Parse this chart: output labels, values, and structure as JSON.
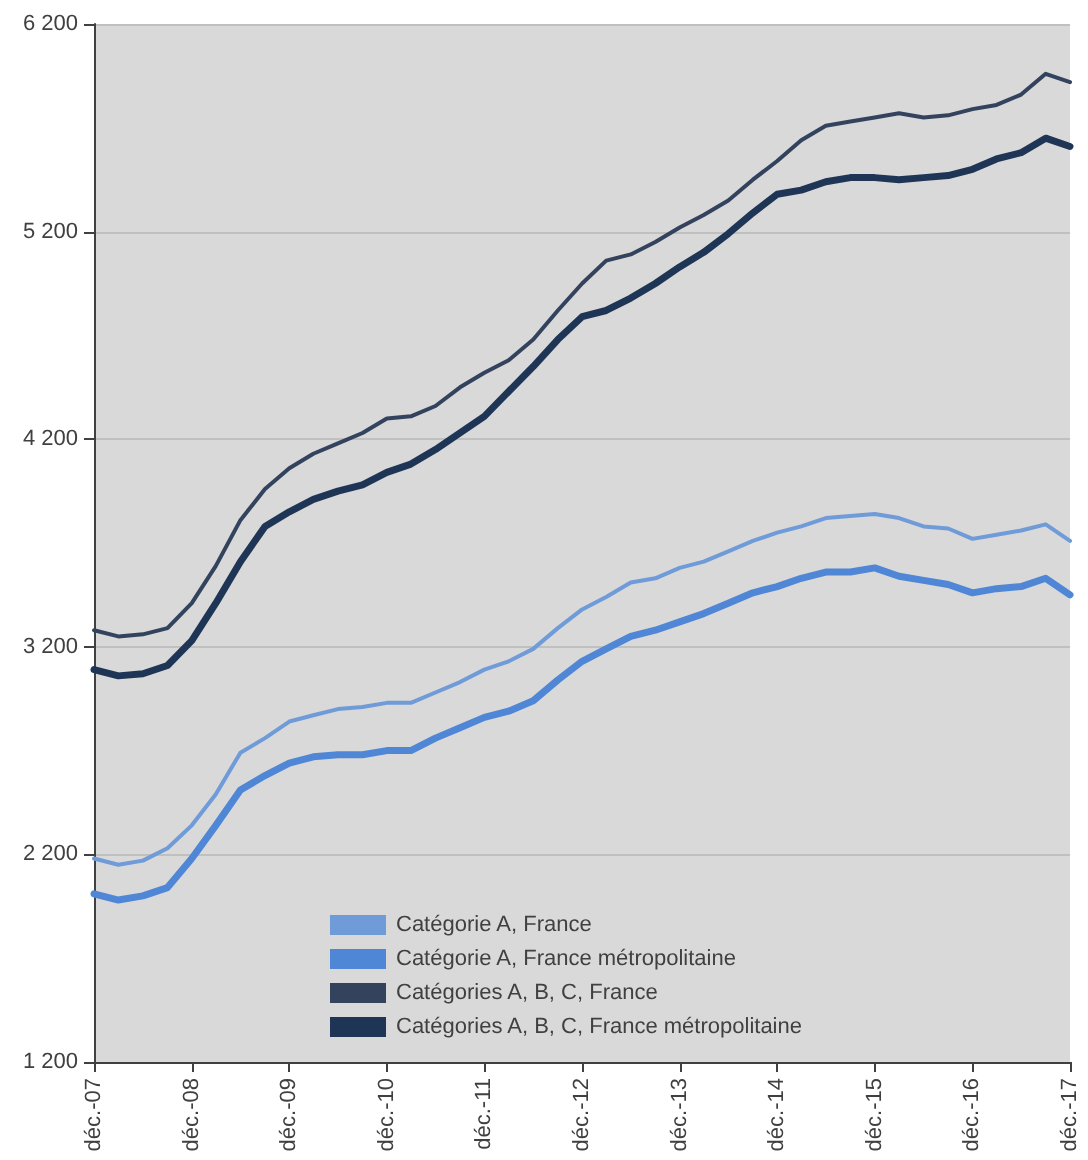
{
  "chart_data": {
    "type": "line",
    "x": [
      "2007-12",
      "2008-03",
      "2008-06",
      "2008-09",
      "2008-12",
      "2009-03",
      "2009-06",
      "2009-09",
      "2009-12",
      "2010-03",
      "2010-06",
      "2010-09",
      "2010-12",
      "2011-03",
      "2011-06",
      "2011-09",
      "2011-12",
      "2012-03",
      "2012-06",
      "2012-09",
      "2012-12",
      "2013-03",
      "2013-06",
      "2013-09",
      "2013-12",
      "2014-03",
      "2014-06",
      "2014-09",
      "2014-12",
      "2015-03",
      "2015-06",
      "2015-09",
      "2015-12",
      "2016-03",
      "2016-06",
      "2016-09",
      "2016-12",
      "2017-03",
      "2017-06",
      "2017-09",
      "2017-12"
    ],
    "series": [
      {
        "name": "Catégorie A, France",
        "color": "#6f9bd8",
        "values": [
          2180,
          2150,
          2170,
          2230,
          2340,
          2490,
          2690,
          2760,
          2840,
          2870,
          2900,
          2910,
          2930,
          2930,
          2980,
          3030,
          3090,
          3130,
          3190,
          3290,
          3380,
          3440,
          3510,
          3530,
          3580,
          3610,
          3660,
          3710,
          3750,
          3780,
          3820,
          3830,
          3840,
          3820,
          3780,
          3770,
          3720,
          3740,
          3760,
          3790,
          3710
        ]
      },
      {
        "name": "Catégorie A, France métropolitaine",
        "color": "#4f86d6",
        "values": [
          2010,
          1980,
          2000,
          2040,
          2180,
          2340,
          2510,
          2580,
          2640,
          2670,
          2680,
          2680,
          2700,
          2700,
          2760,
          2810,
          2860,
          2890,
          2940,
          3040,
          3130,
          3190,
          3250,
          3280,
          3320,
          3360,
          3410,
          3460,
          3490,
          3530,
          3560,
          3560,
          3580,
          3540,
          3520,
          3500,
          3460,
          3480,
          3490,
          3530,
          3450
        ]
      },
      {
        "name": "Catégories A, B, C, France",
        "color": "#33435e",
        "values": [
          3280,
          3250,
          3260,
          3290,
          3410,
          3590,
          3810,
          3960,
          4060,
          4130,
          4180,
          4230,
          4300,
          4310,
          4360,
          4450,
          4520,
          4580,
          4680,
          4820,
          4950,
          5060,
          5090,
          5150,
          5220,
          5280,
          5350,
          5450,
          5540,
          5640,
          5710,
          5730,
          5750,
          5770,
          5750,
          5760,
          5790,
          5810,
          5860,
          5960,
          5920
        ]
      },
      {
        "name": "Catégories A, B, C, France métropolitaine",
        "color": "#1f3556",
        "values": [
          3090,
          3060,
          3070,
          3110,
          3230,
          3410,
          3610,
          3780,
          3850,
          3910,
          3950,
          3980,
          4040,
          4080,
          4150,
          4230,
          4310,
          4430,
          4550,
          4680,
          4790,
          4820,
          4880,
          4950,
          5030,
          5100,
          5190,
          5290,
          5380,
          5400,
          5440,
          5460,
          5460,
          5450,
          5460,
          5470,
          5500,
          5550,
          5580,
          5650,
          5610
        ]
      }
    ],
    "xlim": [
      "2007-12",
      "2017-12"
    ],
    "xticks": [
      {
        "value": "2007-12",
        "label": "déc.-07"
      },
      {
        "value": "2008-12",
        "label": "déc.-08"
      },
      {
        "value": "2009-12",
        "label": "déc.-09"
      },
      {
        "value": "2010-12",
        "label": "déc.-10"
      },
      {
        "value": "2011-12",
        "label": "déc.-11"
      },
      {
        "value": "2012-12",
        "label": "déc.-12"
      },
      {
        "value": "2013-12",
        "label": "déc.-13"
      },
      {
        "value": "2014-12",
        "label": "déc.-14"
      },
      {
        "value": "2015-12",
        "label": "déc.-15"
      },
      {
        "value": "2016-12",
        "label": "déc.-16"
      },
      {
        "value": "2017-12",
        "label": "déc.-17"
      }
    ],
    "ylim": [
      1200,
      6200
    ],
    "yticks": [
      {
        "value": 1200,
        "label": "1 200"
      },
      {
        "value": 2200,
        "label": "2 200"
      },
      {
        "value": 3200,
        "label": "3 200"
      },
      {
        "value": 4200,
        "label": "4 200"
      },
      {
        "value": 5200,
        "label": "5 200"
      },
      {
        "value": 6200,
        "label": "6 200"
      }
    ],
    "grid": "y",
    "legend": "bottom",
    "marker": "none",
    "line_style": "solid"
  }
}
